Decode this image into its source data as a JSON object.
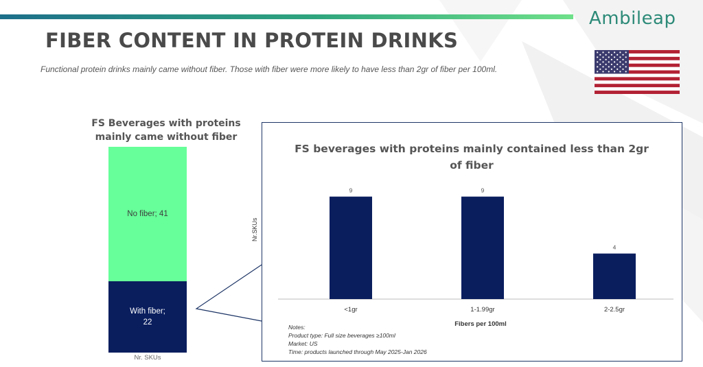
{
  "brand": {
    "logo_text": "Ambileap"
  },
  "header": {
    "title": "FIBER CONTENT IN PROTEIN DRINKS",
    "subtitle": "Functional protein drinks mainly came without fiber. Those with fiber were more likely to have less than 2gr of fiber per 100ml."
  },
  "colors": {
    "accent_green": "#66ff99",
    "navy": "#0a1e5e",
    "brand_teal": "#2c8a78"
  },
  "icons": {
    "flag": "us-flag-icon"
  },
  "chart_data": [
    {
      "type": "bar",
      "stacked": true,
      "title": "FS Beverages with proteins mainly came without fiber",
      "xlabel": "Nr. SKUs",
      "series": [
        {
          "name": "No fiber",
          "values": [
            41
          ],
          "label": "No fiber; 41",
          "color": "#66ff99"
        },
        {
          "name": "With fiber",
          "values": [
            22
          ],
          "label": "With fiber; 22",
          "color": "#0a1e5e"
        }
      ]
    },
    {
      "type": "bar",
      "title": "FS beverages with proteins mainly contained less than 2gr of fiber",
      "xlabel": "Fibers per 100ml",
      "ylabel": "Nr.SKUs",
      "categories": [
        "<1gr",
        "1-1.99gr",
        "2-2.5gr"
      ],
      "values": [
        9,
        9,
        4
      ],
      "ylim": [
        0,
        10
      ],
      "grid": false
    }
  ],
  "notes": [
    "Notes:",
    "Product type: Full size beverages ≥100ml",
    "Market: US",
    "Time: products launched through May 2025-Jan 2026"
  ]
}
